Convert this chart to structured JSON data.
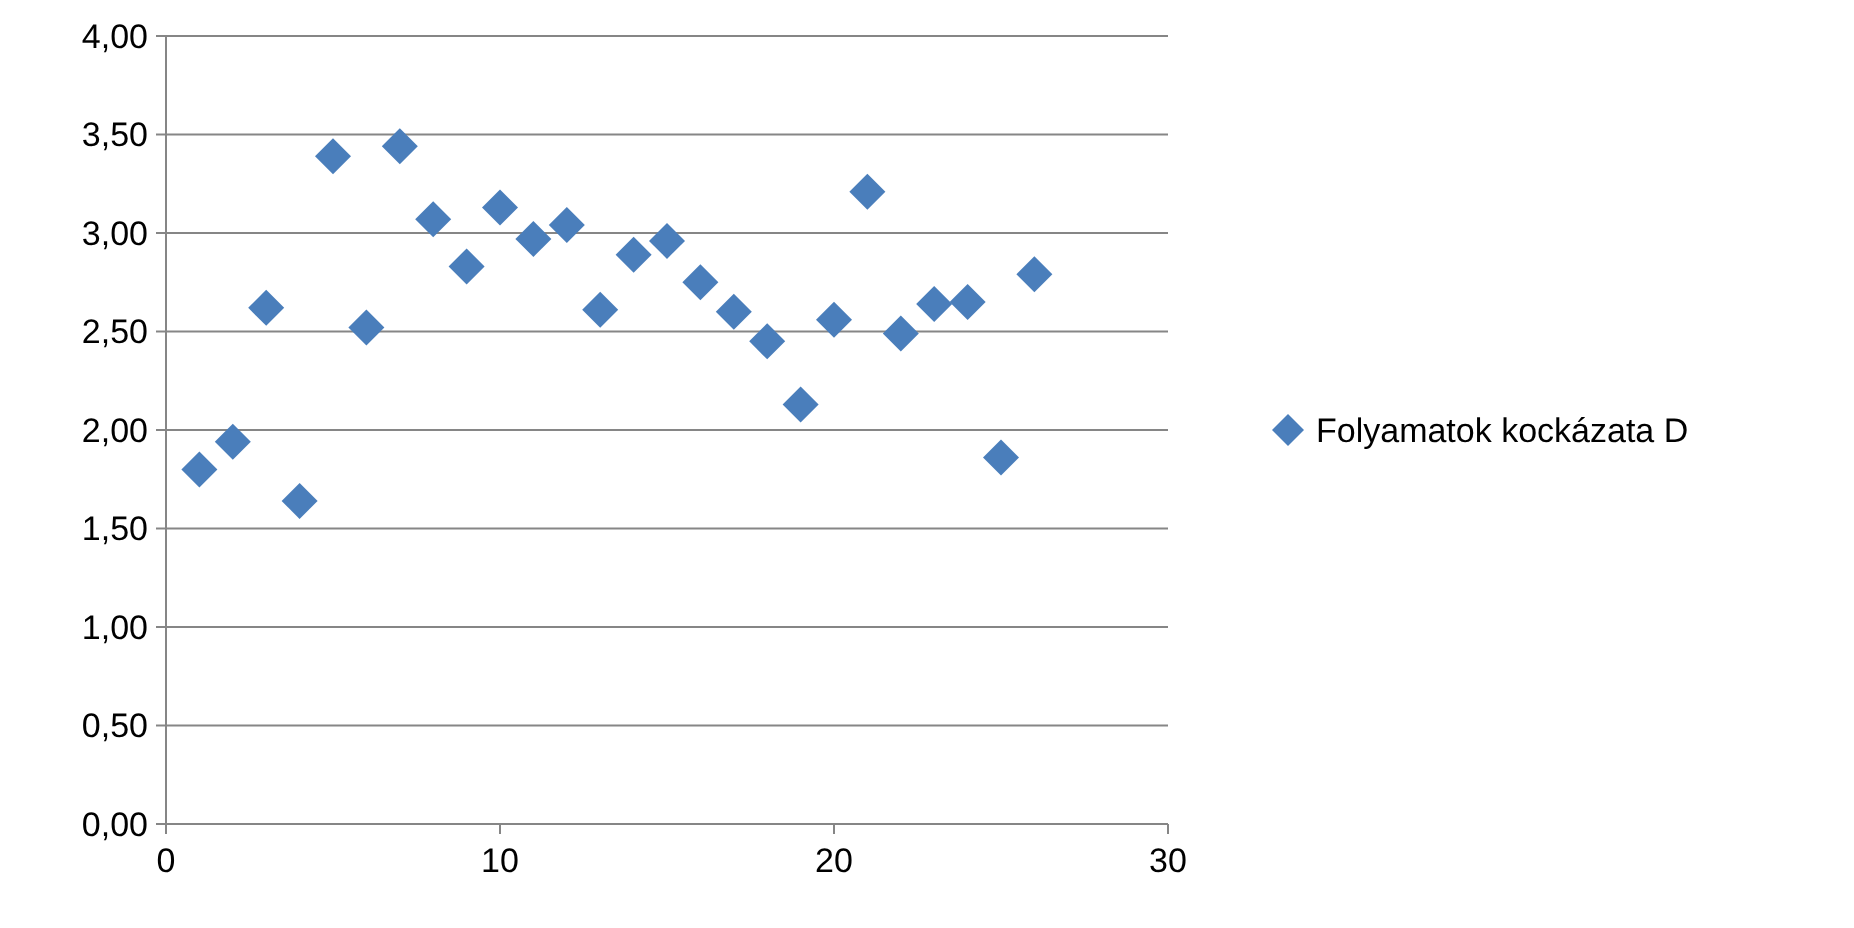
{
  "chart_data": {
    "type": "scatter",
    "x": [
      1,
      2,
      3,
      4,
      5,
      6,
      7,
      8,
      9,
      10,
      11,
      12,
      13,
      14,
      15,
      16,
      17,
      18,
      19,
      20,
      21,
      22,
      23,
      24,
      25,
      26
    ],
    "series": [
      {
        "name": "Folyamatok kockázata D",
        "color": "#4a7ebb",
        "values": [
          1.8,
          1.94,
          2.62,
          1.64,
          3.39,
          2.52,
          3.44,
          3.07,
          2.83,
          3.13,
          2.97,
          3.04,
          2.61,
          2.89,
          2.96,
          2.75,
          2.6,
          2.45,
          2.13,
          2.56,
          3.21,
          2.49,
          2.64,
          2.65,
          1.86,
          2.79
        ]
      }
    ],
    "xlim": [
      0,
      30
    ],
    "xticks": [
      0,
      10,
      20,
      30
    ],
    "ylim": [
      0,
      4
    ],
    "yticks": [
      {
        "value": 0,
        "label": "0,00"
      },
      {
        "value": 0.5,
        "label": "0,50"
      },
      {
        "value": 1,
        "label": "1,00"
      },
      {
        "value": 1.5,
        "label": "1,50"
      },
      {
        "value": 2,
        "label": "2,00"
      },
      {
        "value": 2.5,
        "label": "2,50"
      },
      {
        "value": 3,
        "label": "3,00"
      },
      {
        "value": 3.5,
        "label": "3,50"
      },
      {
        "value": 4,
        "label": "4,00"
      }
    ],
    "grid": "y",
    "legend": "right",
    "marker": "diamond"
  }
}
